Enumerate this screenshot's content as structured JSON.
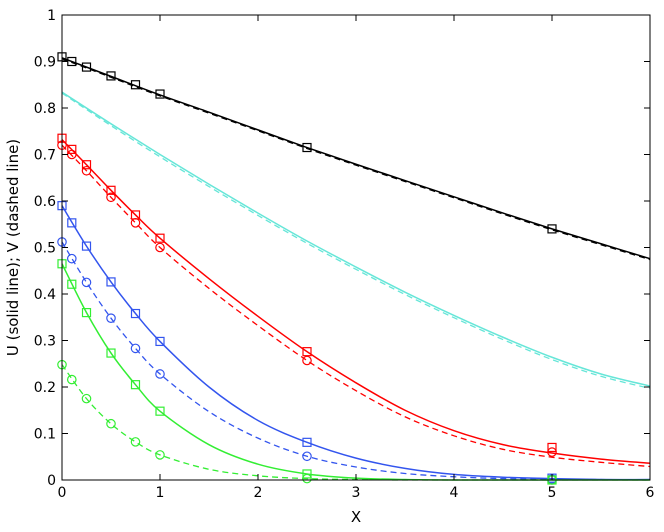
{
  "chart_data": {
    "type": "line",
    "xlabel": "X",
    "ylabel": "U (solid line); V (dashed line)",
    "xlim": [
      0,
      6
    ],
    "ylim": [
      0,
      1
    ],
    "x_ticks": [
      0,
      1,
      2,
      3,
      4,
      5,
      6
    ],
    "y_ticks": [
      0,
      0.1,
      0.2,
      0.3,
      0.4,
      0.5,
      0.6,
      0.7,
      0.8,
      0.9,
      1
    ],
    "x_tick_labels": [
      "0",
      "1",
      "2",
      "3",
      "4",
      "5",
      "6"
    ],
    "y_tick_labels": [
      "0",
      "0.1",
      "0.2",
      "0.3",
      "0.4",
      "0.5",
      "0.6",
      "0.7",
      "0.8",
      "0.9",
      "1"
    ],
    "grid": false,
    "legend": "none",
    "series": [
      {
        "color": "#000000",
        "line": "solid",
        "marker": "square",
        "x": [
          0,
          0.5,
          1,
          1.5,
          2,
          2.5,
          3,
          3.5,
          4,
          4.5,
          5,
          5.5,
          6
        ],
        "y": [
          0.908,
          0.868,
          0.828,
          0.791,
          0.753,
          0.715,
          0.679,
          0.644,
          0.609,
          0.574,
          0.54,
          0.508,
          0.476
        ],
        "marker_x": [
          0,
          0.1,
          0.25,
          0.5,
          0.75,
          1,
          2.5,
          5
        ],
        "marker_y": [
          0.91,
          0.9,
          0.888,
          0.869,
          0.85,
          0.83,
          0.715,
          0.54
        ]
      },
      {
        "color": "#000000",
        "line": "dashed",
        "marker": "none",
        "x": [
          0,
          0.5,
          1,
          1.5,
          2,
          2.5,
          3,
          3.5,
          4,
          4.5,
          5,
          5.5,
          6
        ],
        "y": [
          0.906,
          0.866,
          0.826,
          0.789,
          0.751,
          0.713,
          0.677,
          0.642,
          0.607,
          0.572,
          0.538,
          0.506,
          0.474
        ]
      },
      {
        "color": "#66e6d8",
        "line": "solid",
        "marker": "none",
        "x": [
          0,
          0.5,
          1,
          1.5,
          2,
          2.5,
          3,
          3.5,
          4,
          4.5,
          5,
          5.5,
          6
        ],
        "y": [
          0.834,
          0.766,
          0.7,
          0.636,
          0.574,
          0.514,
          0.458,
          0.404,
          0.354,
          0.307,
          0.264,
          0.228,
          0.202
        ]
      },
      {
        "color": "#66e6d8",
        "line": "dashed",
        "marker": "none",
        "x": [
          0,
          0.5,
          1,
          1.5,
          2,
          2.5,
          3,
          3.5,
          4,
          4.5,
          5,
          5.5,
          6
        ],
        "y": [
          0.832,
          0.762,
          0.695,
          0.631,
          0.569,
          0.509,
          0.453,
          0.399,
          0.349,
          0.302,
          0.259,
          0.223,
          0.197
        ]
      },
      {
        "color": "#ff0000",
        "line": "solid",
        "marker": "square",
        "x": [
          0,
          0.25,
          0.5,
          0.75,
          1,
          1.5,
          2,
          2.5,
          3,
          3.5,
          4,
          4.5,
          5,
          5.5,
          6
        ],
        "y": [
          0.732,
          0.678,
          0.623,
          0.57,
          0.52,
          0.433,
          0.352,
          0.276,
          0.209,
          0.15,
          0.106,
          0.076,
          0.058,
          0.045,
          0.036
        ],
        "marker_x": [
          0,
          0.1,
          0.25,
          0.5,
          0.75,
          1,
          2.5,
          5
        ],
        "marker_y": [
          0.735,
          0.711,
          0.678,
          0.623,
          0.57,
          0.52,
          0.276,
          0.07
        ]
      },
      {
        "color": "#ff0000",
        "line": "dashed",
        "marker": "circle",
        "x": [
          0,
          0.25,
          0.5,
          0.75,
          1,
          1.5,
          2,
          2.5,
          3,
          3.5,
          4,
          4.5,
          5,
          5.5,
          6
        ],
        "y": [
          0.72,
          0.665,
          0.608,
          0.553,
          0.5,
          0.412,
          0.332,
          0.257,
          0.192,
          0.136,
          0.095,
          0.066,
          0.049,
          0.038,
          0.029
        ],
        "marker_x": [
          0,
          0.1,
          0.25,
          0.5,
          0.75,
          1,
          2.5,
          5
        ],
        "marker_y": [
          0.72,
          0.7,
          0.665,
          0.608,
          0.553,
          0.5,
          0.257,
          0.06
        ]
      },
      {
        "color": "#3355ee",
        "line": "solid",
        "marker": "square",
        "x": [
          0,
          0.25,
          0.5,
          0.75,
          1,
          1.5,
          2,
          2.5,
          3,
          3.5,
          4,
          4.5,
          5,
          5.5,
          6
        ],
        "y": [
          0.59,
          0.503,
          0.426,
          0.358,
          0.298,
          0.2,
          0.128,
          0.081,
          0.047,
          0.025,
          0.012,
          0.006,
          0.003,
          0.001,
          0.001
        ],
        "marker_x": [
          0,
          0.1,
          0.25,
          0.5,
          0.75,
          1,
          2.5,
          5
        ],
        "marker_y": [
          0.59,
          0.553,
          0.503,
          0.426,
          0.358,
          0.298,
          0.081,
          0.004
        ]
      },
      {
        "color": "#3355ee",
        "line": "dashed",
        "marker": "circle",
        "x": [
          0,
          0.25,
          0.5,
          0.75,
          1,
          1.5,
          2,
          2.5,
          3,
          3.5,
          4,
          4.5,
          5,
          5.5,
          6
        ],
        "y": [
          0.512,
          0.425,
          0.348,
          0.283,
          0.228,
          0.147,
          0.09,
          0.051,
          0.028,
          0.014,
          0.007,
          0.003,
          0.002,
          0.001,
          0.0
        ],
        "marker_x": [
          0,
          0.1,
          0.25,
          0.5,
          0.75,
          1,
          2.5,
          5
        ],
        "marker_y": [
          0.512,
          0.476,
          0.425,
          0.348,
          0.283,
          0.228,
          0.051,
          0.002
        ]
      },
      {
        "color": "#33ee33",
        "line": "solid",
        "marker": "square",
        "x": [
          0,
          0.25,
          0.5,
          0.75,
          1,
          1.5,
          2,
          2.5,
          3,
          3.5,
          4,
          4.5,
          5,
          5.5,
          6
        ],
        "y": [
          0.465,
          0.36,
          0.273,
          0.205,
          0.148,
          0.076,
          0.034,
          0.013,
          0.004,
          0.001,
          0.0,
          0.0,
          0.0,
          0.0,
          0.0
        ],
        "marker_x": [
          0,
          0.1,
          0.25,
          0.5,
          0.75,
          1,
          2.5,
          5
        ],
        "marker_y": [
          0.465,
          0.421,
          0.36,
          0.273,
          0.205,
          0.148,
          0.013,
          0.0
        ]
      },
      {
        "color": "#33ee33",
        "line": "dashed",
        "marker": "circle",
        "x": [
          0,
          0.25,
          0.5,
          0.75,
          1,
          1.5,
          2,
          2.5,
          3,
          3.5,
          4,
          4.5,
          5,
          5.5,
          6
        ],
        "y": [
          0.248,
          0.175,
          0.121,
          0.082,
          0.054,
          0.023,
          0.009,
          0.003,
          0.001,
          0.0,
          0.0,
          0.0,
          0.0,
          0.0,
          0.0
        ],
        "marker_x": [
          0,
          0.1,
          0.25,
          0.5,
          0.75,
          1,
          2.5,
          5
        ],
        "marker_y": [
          0.248,
          0.216,
          0.175,
          0.121,
          0.082,
          0.054,
          0.003,
          0.0
        ]
      }
    ]
  }
}
